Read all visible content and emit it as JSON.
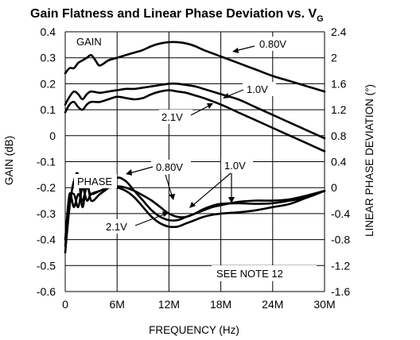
{
  "chart_data": {
    "type": "line",
    "title": "Gain Flatness and Linear Phase Deviation vs. V",
    "title_subscript": "G",
    "xlabel": "FREQUENCY (Hz)",
    "ylabel_left": "GAIN (dB)",
    "ylabel_right": "LINEAR PHASE DEVIATION (°)",
    "x_ticks": [
      "0",
      "6M",
      "12M",
      "18M",
      "24M",
      "30M"
    ],
    "x_tick_values": [
      0,
      6,
      12,
      18,
      24,
      30
    ],
    "y_left_ticks": [
      "0.4",
      "0.3",
      "0.2",
      "0.1",
      "0",
      "-0.1",
      "-0.2",
      "-0.3",
      "-0.4",
      "-0.5",
      "-0.6"
    ],
    "y_left_tick_values": [
      0.4,
      0.3,
      0.2,
      0.1,
      0,
      -0.1,
      -0.2,
      -0.3,
      -0.4,
      -0.5,
      -0.6
    ],
    "y_right_ticks": [
      "2.4",
      "2",
      "1.6",
      "1.2",
      "0.8",
      "0.4",
      "0",
      "-0.4",
      "-0.8",
      "-1.2",
      "-1.6"
    ],
    "y_right_tick_values": [
      2.4,
      2,
      1.6,
      1.2,
      0.8,
      0.4,
      0,
      -0.4,
      -0.8,
      -1.2,
      -1.6
    ],
    "xlim": [
      0,
      30
    ],
    "ylim_left": [
      -0.6,
      0.4
    ],
    "ylim_right": [
      -1.6,
      2.4
    ],
    "grid": true,
    "annotations": {
      "gain": "GAIN",
      "phase": "PHASE",
      "gain_080": "0.80V",
      "gain_10": "1.0V",
      "gain_21": "2.1V",
      "phase_080": "0.80V",
      "phase_10": "1.0V",
      "phase_21": "2.1V",
      "note": "SEE NOTE 12"
    },
    "series": [
      {
        "group": "gain",
        "axis": "left",
        "label": "0.80V",
        "x": [
          0,
          0.5,
          1,
          1.5,
          2,
          2.5,
          3,
          3.5,
          4,
          5,
          6,
          7,
          8,
          9,
          10,
          11,
          12,
          13,
          14,
          15,
          16,
          18,
          20,
          22,
          24,
          26,
          28,
          30
        ],
        "y": [
          0.24,
          0.26,
          0.26,
          0.28,
          0.29,
          0.3,
          0.31,
          0.29,
          0.27,
          0.29,
          0.3,
          0.31,
          0.32,
          0.33,
          0.345,
          0.355,
          0.36,
          0.36,
          0.355,
          0.345,
          0.33,
          0.305,
          0.28,
          0.255,
          0.23,
          0.21,
          0.19,
          0.17
        ]
      },
      {
        "group": "gain",
        "axis": "left",
        "label": "1.0V",
        "x": [
          0,
          0.5,
          1,
          1.5,
          2,
          2.5,
          3,
          4,
          5,
          6,
          7,
          8,
          9,
          10,
          11,
          12,
          13,
          14,
          15,
          16,
          18,
          20,
          22,
          24,
          26,
          28,
          30
        ],
        "y": [
          0.12,
          0.15,
          0.17,
          0.16,
          0.14,
          0.16,
          0.17,
          0.165,
          0.17,
          0.175,
          0.18,
          0.18,
          0.185,
          0.19,
          0.195,
          0.2,
          0.2,
          0.195,
          0.19,
          0.18,
          0.16,
          0.14,
          0.11,
          0.08,
          0.05,
          0.02,
          -0.01
        ]
      },
      {
        "group": "gain",
        "axis": "left",
        "label": "2.1V",
        "x": [
          0,
          0.5,
          1,
          1.5,
          2,
          2.5,
          3,
          4,
          5,
          6,
          7,
          8,
          9,
          10,
          11,
          12,
          13,
          14,
          15,
          16,
          18,
          20,
          22,
          24,
          26,
          28,
          30
        ],
        "y": [
          0.09,
          0.12,
          0.13,
          0.11,
          0.1,
          0.12,
          0.13,
          0.13,
          0.14,
          0.15,
          0.145,
          0.14,
          0.145,
          0.16,
          0.17,
          0.175,
          0.17,
          0.165,
          0.155,
          0.145,
          0.12,
          0.09,
          0.06,
          0.03,
          0.0,
          -0.03,
          -0.06
        ]
      },
      {
        "group": "phase",
        "axis": "right",
        "label": "0.80V",
        "x": [
          0,
          0.5,
          1,
          1.5,
          2,
          2.5,
          3,
          4,
          5,
          6,
          7,
          8,
          9,
          10,
          11,
          12,
          13,
          14,
          15,
          16,
          17,
          18,
          20,
          22,
          24,
          26,
          28,
          30
        ],
        "y": [
          -1.0,
          -0.3,
          0.1,
          0.2,
          -0.3,
          0.1,
          -0.2,
          -0.1,
          0.0,
          0.15,
          0.1,
          -0.05,
          -0.2,
          -0.35,
          -0.45,
          -0.5,
          -0.5,
          -0.45,
          -0.4,
          -0.33,
          -0.28,
          -0.25,
          -0.24,
          -0.25,
          -0.24,
          -0.2,
          -0.15,
          -0.05
        ]
      },
      {
        "group": "phase",
        "axis": "right",
        "label": "1.0V",
        "x": [
          0,
          0.5,
          1,
          1.5,
          2,
          2.5,
          3,
          4,
          5,
          6,
          7,
          8,
          9,
          10,
          11,
          12,
          13,
          14,
          15,
          16,
          17,
          18,
          20,
          22,
          24,
          26,
          28,
          30
        ],
        "y": [
          -0.8,
          -0.1,
          -0.3,
          -0.1,
          -0.2,
          0.0,
          -0.1,
          -0.05,
          0.0,
          0.02,
          0.0,
          -0.05,
          -0.12,
          -0.2,
          -0.3,
          -0.4,
          -0.45,
          -0.45,
          -0.4,
          -0.35,
          -0.3,
          -0.27,
          -0.22,
          -0.2,
          -0.2,
          -0.18,
          -0.12,
          -0.05
        ]
      },
      {
        "group": "phase",
        "axis": "right",
        "label": "2.1V",
        "x": [
          0,
          0.5,
          1,
          1.5,
          2,
          2.5,
          3,
          4,
          5,
          6,
          7,
          8,
          9,
          10,
          11,
          12,
          13,
          14,
          15,
          16,
          17,
          18,
          20,
          22,
          24,
          26,
          28,
          30
        ],
        "y": [
          -0.9,
          -0.2,
          -0.1,
          -0.3,
          0.0,
          -0.2,
          -0.1,
          -0.05,
          0.0,
          0.0,
          -0.05,
          -0.15,
          -0.3,
          -0.45,
          -0.55,
          -0.6,
          -0.6,
          -0.55,
          -0.5,
          -0.45,
          -0.42,
          -0.4,
          -0.38,
          -0.35,
          -0.3,
          -0.25,
          -0.15,
          -0.05
        ]
      }
    ]
  }
}
